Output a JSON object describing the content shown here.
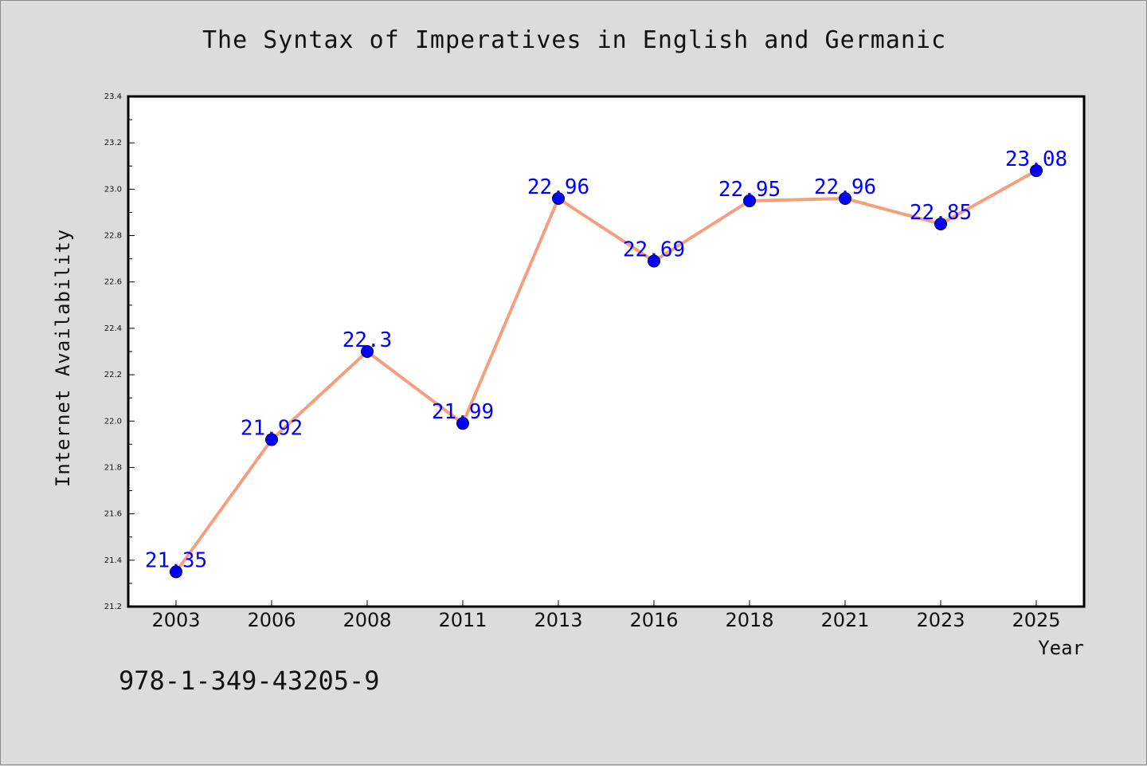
{
  "colors": {
    "background": "#dcdcdc",
    "plot_background": "#ffffff",
    "line": "#f4a07f",
    "marker": "#0000ff",
    "data_label": "#0000ff",
    "axis": "#000000",
    "text": "#111111"
  },
  "footer": {
    "isbn": "978-1-349-43205-9"
  },
  "chart_data": {
    "type": "line",
    "title": "The Syntax of Imperatives in English and Germanic",
    "xlabel": "Year",
    "ylabel": "Internet Availability",
    "categories": [
      "2003",
      "2006",
      "2008",
      "2011",
      "2013",
      "2016",
      "2018",
      "2021",
      "2023",
      "2025"
    ],
    "series": [
      {
        "values": [
          21.35,
          21.92,
          22.3,
          21.99,
          22.96,
          22.69,
          22.95,
          22.96,
          22.85,
          23.08
        ],
        "data_labels": [
          "21.35",
          "21.92",
          "22.3",
          "21.99",
          "22.96",
          "22.69",
          "22.95",
          "22.96",
          "22.85",
          "23.08"
        ]
      }
    ],
    "ylim": [
      21.2,
      23.4
    ],
    "yticks": [
      "21.2",
      "21.4",
      "21.6",
      "21.8",
      "22.0",
      "22.2",
      "22.4",
      "22.6",
      "22.8",
      "23.0",
      "23.2",
      "23.4"
    ],
    "grid": false,
    "legend": "none",
    "markers": true,
    "data_labels_shown": true
  }
}
